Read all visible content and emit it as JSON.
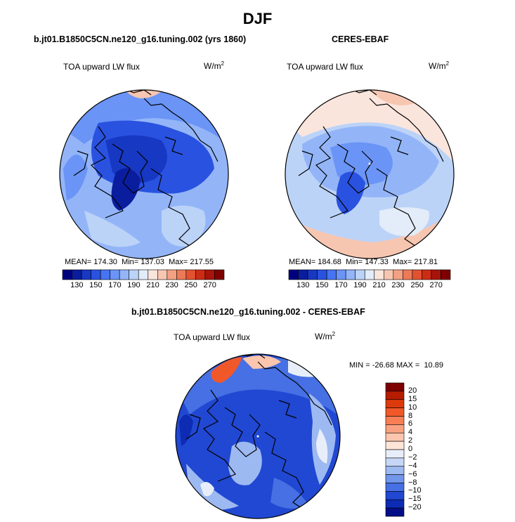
{
  "season_title": "DJF",
  "panels": [
    {
      "title": "b.jt01.B1850C5CN.ne120_g16.tuning.002 (yrs 1860)",
      "variable": "TOA upward LW flux",
      "units_base": "W/m",
      "units_exp": "2",
      "stats": {
        "mean_label": "MEAN=",
        "mean": "174.30",
        "min_label": "Min=",
        "min": "137.03",
        "max_label": "Max=",
        "max": "217.55"
      }
    },
    {
      "title": "CERES-EBAF",
      "variable": "TOA upward LW flux",
      "units_base": "W/m",
      "units_exp": "2",
      "stats": {
        "mean_label": "MEAN=",
        "mean": "184.68",
        "min_label": "Min=",
        "min": "147.33",
        "max_label": "Max=",
        "max": "217.81"
      }
    }
  ],
  "diff_panel": {
    "title": "b.jt01.B1850C5CN.ne120_g16.tuning.002 - CERES-EBAF",
    "variable": "TOA upward LW flux",
    "units_base": "W/m",
    "units_exp": "2",
    "stats": {
      "min_label": "MIN =",
      "min": "-26.68",
      "max_label": "MAX =",
      "max": "10.89"
    }
  },
  "chart_data": [
    {
      "type": "heatmap",
      "title": "b.jt01.B1850C5CN.ne120_g16.tuning.002 (yrs 1860)",
      "projection": "north polar stereographic",
      "variable": "TOA upward LW flux",
      "units": "W/m2",
      "colorbar_ticks": [
        "130",
        "150",
        "170",
        "190",
        "210",
        "230",
        "250",
        "270"
      ],
      "colorbar_colors": [
        "#00007f",
        "#0a1d9e",
        "#1738c2",
        "#2a52e0",
        "#4674f2",
        "#6a94f6",
        "#93b5f8",
        "#bcd3f8",
        "#e3ecf9",
        "#fae5dc",
        "#f7c6b1",
        "#f3a183",
        "#ec7a58",
        "#e25230",
        "#cd2c14",
        "#a8140a",
        "#7f0000"
      ],
      "mean": 174.3,
      "min": 137.03,
      "max": 217.55
    },
    {
      "type": "heatmap",
      "title": "CERES-EBAF",
      "projection": "north polar stereographic",
      "variable": "TOA upward LW flux",
      "units": "W/m2",
      "colorbar_ticks": [
        "130",
        "150",
        "170",
        "190",
        "210",
        "230",
        "250",
        "270"
      ],
      "colorbar_colors": [
        "#00007f",
        "#0a1d9e",
        "#1738c2",
        "#2a52e0",
        "#4674f2",
        "#6a94f6",
        "#93b5f8",
        "#bcd3f8",
        "#e3ecf9",
        "#fae5dc",
        "#f7c6b1",
        "#f3a183",
        "#ec7a58",
        "#e25230",
        "#cd2c14",
        "#a8140a",
        "#7f0000"
      ],
      "mean": 184.68,
      "min": 147.33,
      "max": 217.81
    },
    {
      "type": "heatmap",
      "title": "b.jt01.B1850C5CN.ne120_g16.tuning.002 - CERES-EBAF",
      "projection": "north polar stereographic",
      "variable": "TOA upward LW flux",
      "units": "W/m2",
      "colorbar_ticks": [
        "20",
        "15",
        "10",
        "8",
        "6",
        "4",
        "2",
        "0",
        "−2",
        "−4",
        "−6",
        "−8",
        "−10",
        "−15",
        "−20"
      ],
      "colorbar_colors": [
        "#7f0000",
        "#b51c00",
        "#dc3a0d",
        "#f0582a",
        "#f77e55",
        "#f9a281",
        "#fbc6ad",
        "#fde6d8",
        "#e8eef9",
        "#c5d6f6",
        "#9db9f2",
        "#7196ec",
        "#4670e3",
        "#2148d2",
        "#0d2bb3",
        "#030f86"
      ],
      "min": -26.68,
      "max": 10.89
    }
  ]
}
